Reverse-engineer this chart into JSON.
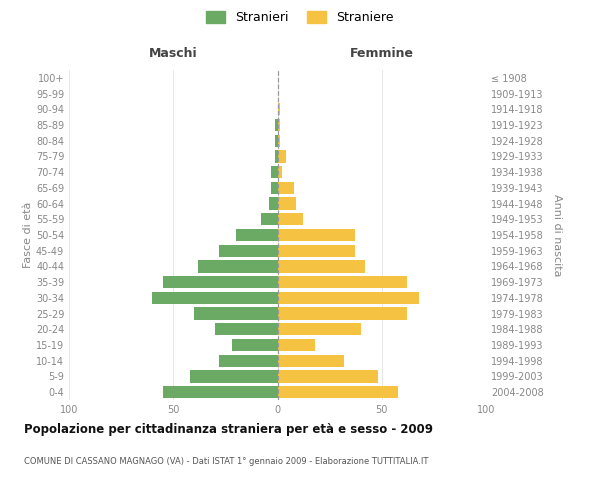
{
  "age_groups": [
    "0-4",
    "5-9",
    "10-14",
    "15-19",
    "20-24",
    "25-29",
    "30-34",
    "35-39",
    "40-44",
    "45-49",
    "50-54",
    "55-59",
    "60-64",
    "65-69",
    "70-74",
    "75-79",
    "80-84",
    "85-89",
    "90-94",
    "95-99",
    "100+"
  ],
  "birth_years": [
    "2004-2008",
    "1999-2003",
    "1994-1998",
    "1989-1993",
    "1984-1988",
    "1979-1983",
    "1974-1978",
    "1969-1973",
    "1964-1968",
    "1959-1963",
    "1954-1958",
    "1949-1953",
    "1944-1948",
    "1939-1943",
    "1934-1938",
    "1929-1933",
    "1924-1928",
    "1919-1923",
    "1914-1918",
    "1909-1913",
    "≤ 1908"
  ],
  "males": [
    55,
    42,
    28,
    22,
    30,
    40,
    60,
    55,
    38,
    28,
    20,
    8,
    4,
    3,
    3,
    1,
    1,
    1,
    0,
    0,
    0
  ],
  "females": [
    58,
    48,
    32,
    18,
    40,
    62,
    68,
    62,
    42,
    37,
    37,
    12,
    9,
    8,
    2,
    4,
    1,
    1,
    1,
    0,
    0
  ],
  "male_color": "#6aaa64",
  "female_color": "#f5c242",
  "center_line_color": "#999999",
  "background_color": "#ffffff",
  "grid_color": "#dddddd",
  "title": "Popolazione per cittadinanza straniera per età e sesso - 2009",
  "subtitle": "COMUNE DI CASSANO MAGNAGO (VA) - Dati ISTAT 1° gennaio 2009 - Elaborazione TUTTITALIA.IT",
  "ylabel_left": "Fasce di età",
  "ylabel_right": "Anni di nascita",
  "legend_male": "Stranieri",
  "legend_female": "Straniere",
  "header_left": "Maschi",
  "header_right": "Femmine",
  "xlim": 100,
  "xticks": [
    -100,
    -50,
    0,
    50,
    100
  ]
}
